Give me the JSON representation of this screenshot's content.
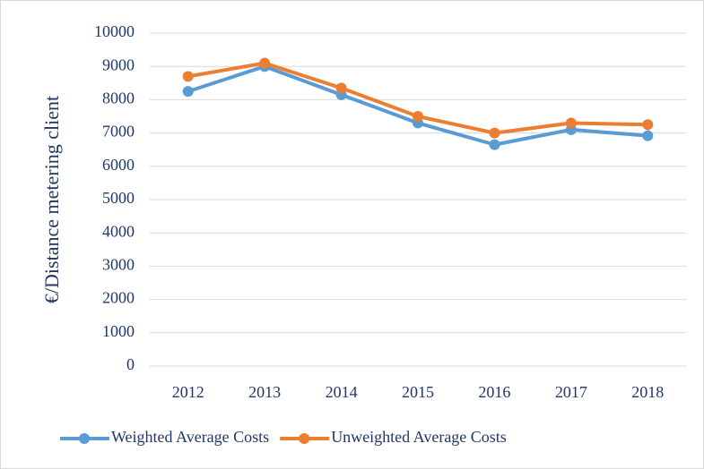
{
  "chart_data": {
    "type": "line",
    "y_label": "€/Distance metering client",
    "categories": [
      "2012",
      "2013",
      "2014",
      "2015",
      "2016",
      "2017",
      "2018"
    ],
    "series": [
      {
        "name": "Weighted Average Costs",
        "color": "#5b9bd5",
        "values": [
          8250,
          9000,
          8150,
          7300,
          6650,
          7100,
          6920
        ]
      },
      {
        "name": "Unweighted Average Costs",
        "color": "#ed7d31",
        "values": [
          8700,
          9100,
          8350,
          7500,
          7000,
          7300,
          7250
        ]
      }
    ],
    "ylim": [
      0,
      10000
    ],
    "yticks": [
      0,
      1000,
      2000,
      3000,
      4000,
      5000,
      6000,
      7000,
      8000,
      9000,
      10000
    ],
    "grid": true
  }
}
